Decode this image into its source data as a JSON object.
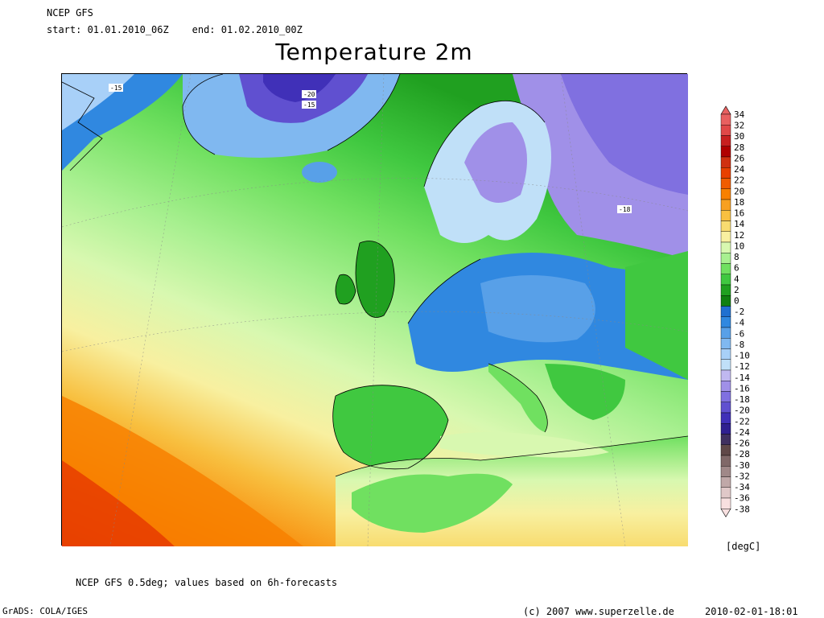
{
  "header": {
    "model": "NCEP GFS",
    "period": "start: 01.01.2010_06Z    end: 01.02.2010_00Z",
    "title": "Temperature 2m"
  },
  "map": {
    "description_labels": [
      {
        "text": "-15"
      },
      {
        "text": "-20"
      },
      {
        "text": "-15"
      },
      {
        "text": "-18"
      }
    ]
  },
  "legend": {
    "unit": "[degC]",
    "levels": [
      "34",
      "32",
      "30",
      "28",
      "26",
      "24",
      "22",
      "20",
      "18",
      "16",
      "14",
      "12",
      "10",
      "8",
      "6",
      "4",
      "2",
      "0",
      "-2",
      "-4",
      "-6",
      "-8",
      "-10",
      "-12",
      "-14",
      "-16",
      "-18",
      "-20",
      "-22",
      "-24",
      "-26",
      "-28",
      "-30",
      "-32",
      "-34",
      "-36",
      "-38"
    ],
    "colors": [
      "#e86060",
      "#e04848",
      "#c82020",
      "#b00000",
      "#d03010",
      "#e84000",
      "#f05c00",
      "#f88000",
      "#f8a020",
      "#f8c040",
      "#f8dc70",
      "#f8f0a0",
      "#d8f8b0",
      "#a8f090",
      "#70e060",
      "#40c840",
      "#20a020",
      "#108010",
      "#2070d0",
      "#3088e0",
      "#58a0e8",
      "#80b8f0",
      "#a8d0f8",
      "#c0e0f8",
      "#c0b8f0",
      "#a090e8",
      "#8070e0",
      "#6050d0",
      "#4030b8",
      "#302090",
      "#403060",
      "#604848",
      "#806868",
      "#a08888",
      "#c0a8a8",
      "#e0c8c8",
      "#f8e0e0"
    ]
  },
  "footer": {
    "note": "NCEP GFS 0.5deg; values based on 6h-forecasts",
    "software": "GrADS: COLA/IGES",
    "copyright": "(c) 2007 www.superzelle.de",
    "timestamp": "2010-02-01-18:01"
  }
}
